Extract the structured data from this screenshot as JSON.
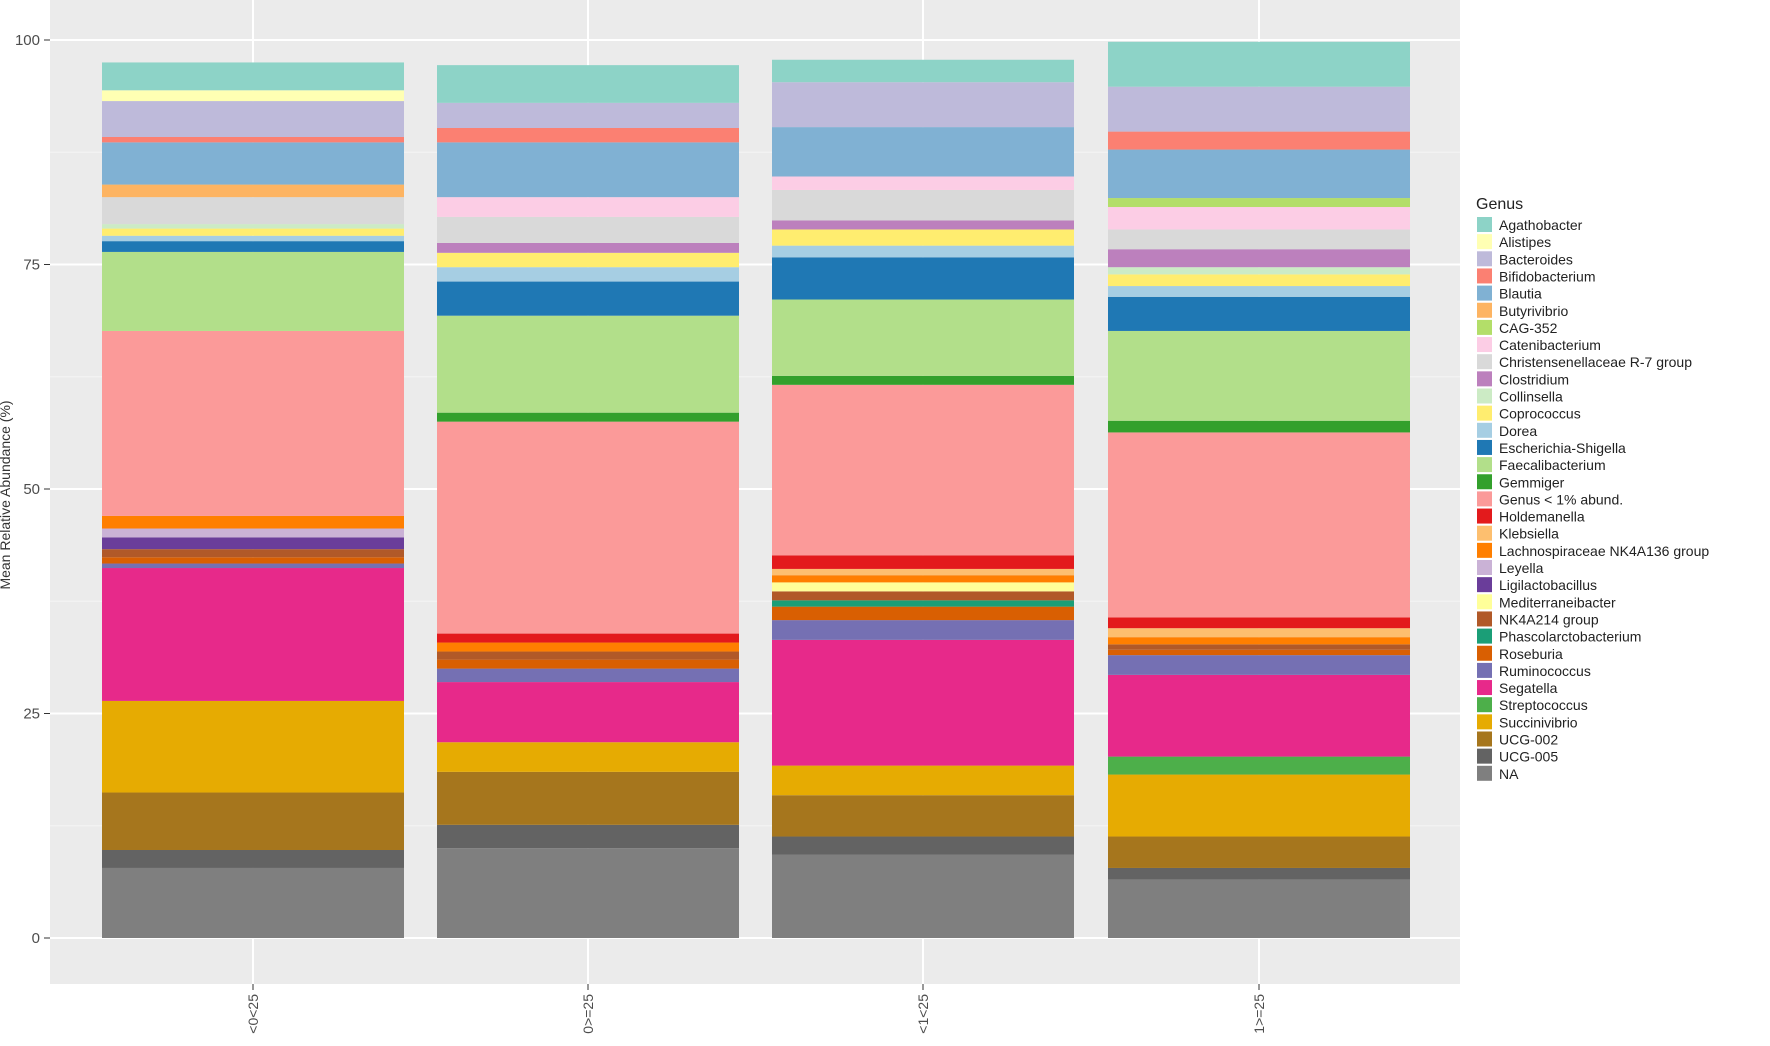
{
  "chart_data": {
    "type": "bar",
    "stacked": true,
    "ylabel": "Mean Relative Abundance (%)",
    "xlabel": "",
    "ylim": [
      0,
      100
    ],
    "yticks": [
      0,
      25,
      50,
      75,
      100
    ],
    "grid": true,
    "legend_position": "right",
    "legend_title": "Genus",
    "categories": [
      "<0<25",
      "0>=25",
      "<1<25",
      "1>=25"
    ],
    "series": [
      {
        "name": "NA",
        "color": "#7f7f7f",
        "values": [
          7.8,
          10.0,
          9.3,
          6.5
        ]
      },
      {
        "name": "UCG-005",
        "color": "#636363",
        "values": [
          2.0,
          2.6,
          2.0,
          1.3
        ]
      },
      {
        "name": "UCG-002",
        "color": "#a6761d",
        "values": [
          6.4,
          5.9,
          4.6,
          3.5
        ]
      },
      {
        "name": "Succinivibrio",
        "color": "#e6ab02",
        "values": [
          10.2,
          3.3,
          3.3,
          6.9
        ]
      },
      {
        "name": "Streptococcus",
        "color": "#4daf4a",
        "values": [
          0,
          0,
          0,
          2.0
        ]
      },
      {
        "name": "Segatella",
        "color": "#e7298a",
        "values": [
          14.8,
          6.7,
          14.0,
          9.1
        ]
      },
      {
        "name": "Ruminococcus",
        "color": "#7570b3",
        "values": [
          0.5,
          1.5,
          2.2,
          2.2
        ]
      },
      {
        "name": "Roseburia",
        "color": "#d95f02",
        "values": [
          0.7,
          1.0,
          1.5,
          0.6
        ]
      },
      {
        "name": "Phascolarctobacterium",
        "color": "#1b9e77",
        "values": [
          0,
          0,
          0.7,
          0
        ]
      },
      {
        "name": "NK4A214 group",
        "color": "#b15928",
        "values": [
          0.9,
          0.9,
          1.0,
          0.6
        ]
      },
      {
        "name": "Mediterraneibacter",
        "color": "#ffff99",
        "values": [
          0,
          0,
          1.0,
          0
        ]
      },
      {
        "name": "Ligilactobacillus",
        "color": "#6a3d9a",
        "values": [
          1.3,
          0,
          0,
          0
        ]
      },
      {
        "name": "Leyella",
        "color": "#cab2d6",
        "values": [
          1.0,
          0,
          0,
          0
        ]
      },
      {
        "name": "Lachnospiraceae NK4A136 group",
        "color": "#ff7f00",
        "values": [
          1.4,
          1.0,
          0.8,
          0.8
        ]
      },
      {
        "name": "Klebsiella",
        "color": "#fdbf6f",
        "values": [
          0,
          0,
          0.7,
          1.0
        ]
      },
      {
        "name": "Holdemanella",
        "color": "#e31a1c",
        "values": [
          0,
          1.0,
          1.5,
          1.2
        ]
      },
      {
        "name": "Genus < 1% abund.",
        "color": "#fb9a99",
        "values": [
          20.6,
          23.6,
          19.0,
          20.6
        ]
      },
      {
        "name": "Gemmiger",
        "color": "#33a02c",
        "values": [
          0,
          1.0,
          1.0,
          1.3
        ]
      },
      {
        "name": "Faecalibacterium",
        "color": "#b2df8a",
        "values": [
          8.8,
          10.8,
          8.5,
          10.0
        ]
      },
      {
        "name": "Escherichia-Shigella",
        "color": "#1f78b4",
        "values": [
          1.2,
          3.8,
          4.7,
          3.8
        ]
      },
      {
        "name": "Dorea",
        "color": "#a6cee3",
        "values": [
          0.6,
          1.6,
          1.3,
          1.2
        ]
      },
      {
        "name": "Coprococcus",
        "color": "#ffed6f",
        "values": [
          0.8,
          1.6,
          1.8,
          1.3
        ]
      },
      {
        "name": "Collinsella",
        "color": "#ccebc5",
        "values": [
          0.5,
          0,
          0,
          0.8
        ]
      },
      {
        "name": "Clostridium",
        "color": "#bc80bd",
        "values": [
          0,
          1.1,
          1.0,
          2.0
        ]
      },
      {
        "name": "Christensenellaceae R-7 group",
        "color": "#d9d9d9",
        "values": [
          3.0,
          2.9,
          3.4,
          2.2
        ]
      },
      {
        "name": "Catenibacterium",
        "color": "#fccde5",
        "values": [
          0,
          2.2,
          1.5,
          2.5
        ]
      },
      {
        "name": "CAG-352",
        "color": "#b3de69",
        "values": [
          0,
          0,
          0,
          1.0
        ]
      },
      {
        "name": "Butyrivibrio",
        "color": "#fdb462",
        "values": [
          1.4,
          0,
          0,
          0
        ]
      },
      {
        "name": "Blautia",
        "color": "#80b1d3",
        "values": [
          4.7,
          6.1,
          5.5,
          5.4
        ]
      },
      {
        "name": "Bifidobacterium",
        "color": "#fb8072",
        "values": [
          0.6,
          1.6,
          0,
          2.0
        ]
      },
      {
        "name": "Bacteroides",
        "color": "#bebada",
        "values": [
          4.0,
          2.8,
          5.0,
          5.0
        ]
      },
      {
        "name": "Alistipes",
        "color": "#ffffb3",
        "values": [
          1.2,
          0,
          0,
          0
        ]
      },
      {
        "name": "Agathobacter",
        "color": "#8dd3c7",
        "values": [
          3.1,
          4.2,
          2.5,
          5.0
        ]
      }
    ]
  }
}
